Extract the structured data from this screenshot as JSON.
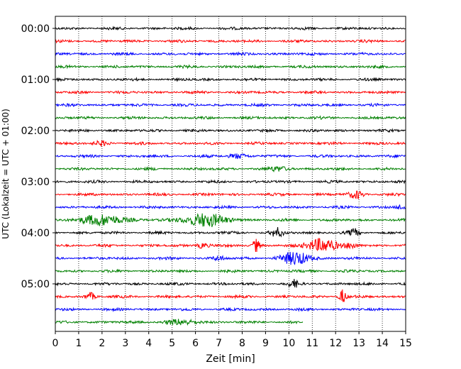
{
  "chart_data": {
    "type": "line",
    "title": "",
    "xlabel": "Zeit  [min]",
    "ylabel": "UTC (Lokalzeit = UTC + 01:00)",
    "xlim": [
      0,
      15
    ],
    "x_ticks": [
      "0",
      "1",
      "2",
      "3",
      "4",
      "5",
      "6",
      "7",
      "8",
      "9",
      "10",
      "11",
      "12",
      "13",
      "14",
      "15"
    ],
    "grid": "vertical dotted",
    "y_tick_labels": [
      "00:00",
      "01:00",
      "02:00",
      "03:00",
      "04:00",
      "05:00"
    ],
    "series_colors": [
      "#000000",
      "#ff0000",
      "#0000ff",
      "#008000"
    ],
    "trace_count": 24,
    "trace_interval_min": 15,
    "last_trace_end_min": 10.6,
    "events": [
      {
        "trace": 9,
        "x": 2.0,
        "amp": 3,
        "dur": 0.6
      },
      {
        "trace": 10,
        "x": 7.8,
        "amp": 3,
        "dur": 0.8
      },
      {
        "trace": 11,
        "x": 9.6,
        "amp": 3,
        "dur": 0.8
      },
      {
        "trace": 13,
        "x": 12.9,
        "amp": 5,
        "dur": 0.6
      },
      {
        "trace": 14,
        "x": 14.8,
        "amp": 3,
        "dur": 0.4
      },
      {
        "trace": 15,
        "x": 2.0,
        "amp": 7,
        "dur": 2.0
      },
      {
        "trace": 15,
        "x": 6.4,
        "amp": 9,
        "dur": 1.8
      },
      {
        "trace": 16,
        "x": 9.5,
        "amp": 6,
        "dur": 0.5
      },
      {
        "trace": 16,
        "x": 12.8,
        "amp": 5,
        "dur": 0.4
      },
      {
        "trace": 17,
        "x": 6.3,
        "amp": 4,
        "dur": 0.5
      },
      {
        "trace": 17,
        "x": 8.6,
        "amp": 9,
        "dur": 0.3
      },
      {
        "trace": 17,
        "x": 11.4,
        "amp": 10,
        "dur": 1.2
      },
      {
        "trace": 17,
        "x": 12.7,
        "amp": 4,
        "dur": 0.5
      },
      {
        "trace": 18,
        "x": 10.3,
        "amp": 9,
        "dur": 1.2
      },
      {
        "trace": 18,
        "x": 7.0,
        "amp": 3,
        "dur": 0.5
      },
      {
        "trace": 20,
        "x": 10.2,
        "amp": 5,
        "dur": 0.4
      },
      {
        "trace": 21,
        "x": 1.5,
        "amp": 5,
        "dur": 0.4
      },
      {
        "trace": 21,
        "x": 12.3,
        "amp": 10,
        "dur": 0.3
      },
      {
        "trace": 23,
        "x": 5.4,
        "amp": 3,
        "dur": 1.5
      }
    ]
  }
}
